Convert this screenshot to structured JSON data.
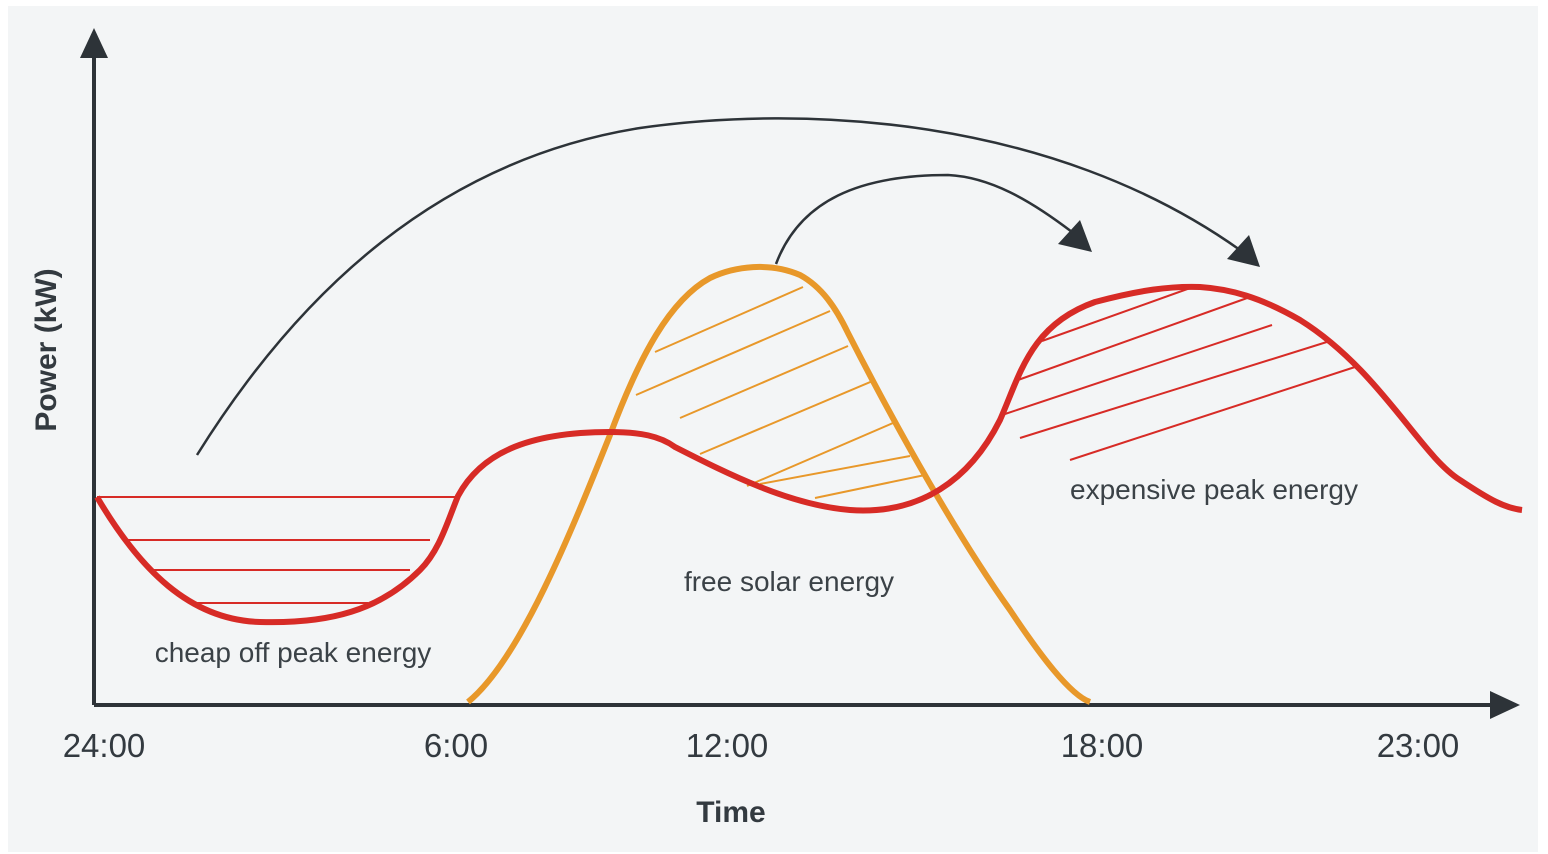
{
  "diagram": {
    "y_axis_label": "Power (kW)",
    "x_axis_label": "Time",
    "x_ticks": [
      "24:00",
      "6:00",
      "12:00",
      "18:00",
      "23:00"
    ],
    "regions": {
      "off_peak": "cheap off peak energy",
      "solar": "free solar energy",
      "peak": "expensive peak energy"
    },
    "colors": {
      "background": "#f3f5f6",
      "axis": "#2d3338",
      "consumption": "#d72b26",
      "solar": "#e8982a",
      "arrows": "#2d3338"
    }
  }
}
